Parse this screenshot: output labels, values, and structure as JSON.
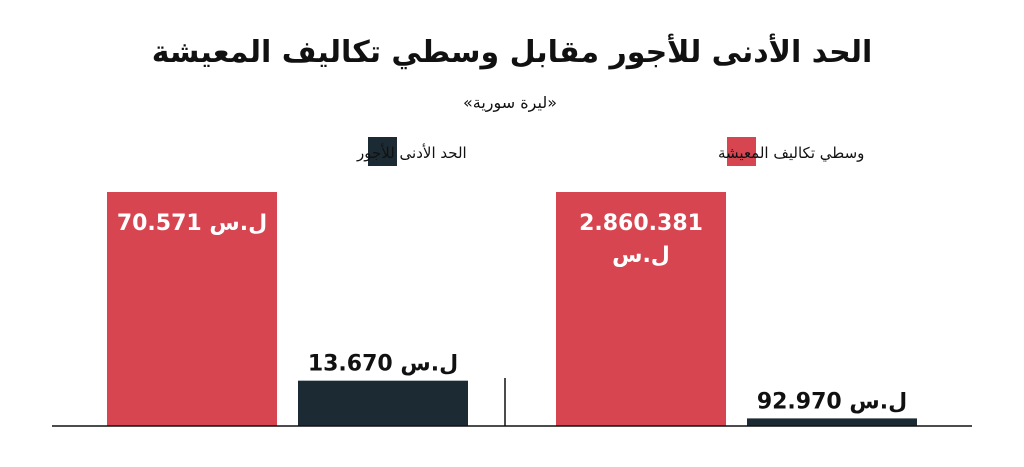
{
  "chart_data": {
    "type": "bar",
    "title": "الحد الأدنى للأجور مقابل وسطي تكاليف المعيشة",
    "subtitle": "«ليرة سورية»",
    "series": [
      {
        "name": "وسطي تكاليف المعيشة",
        "color": "#d64550"
      },
      {
        "name": "الحد الأدنى للأجور",
        "color": "#1c2b33"
      }
    ],
    "groups": [
      {
        "items": [
          {
            "series": 0,
            "value": 70571,
            "label": "70.571 ل.س"
          },
          {
            "series": 1,
            "value": 13670,
            "label": "13.670 ل.س"
          }
        ]
      },
      {
        "items": [
          {
            "series": 0,
            "value": 2860381,
            "label": "2.860.381",
            "unit": "ل.س"
          },
          {
            "series": 1,
            "value": 92970,
            "label": "92.970 ل.س"
          }
        ]
      }
    ]
  }
}
